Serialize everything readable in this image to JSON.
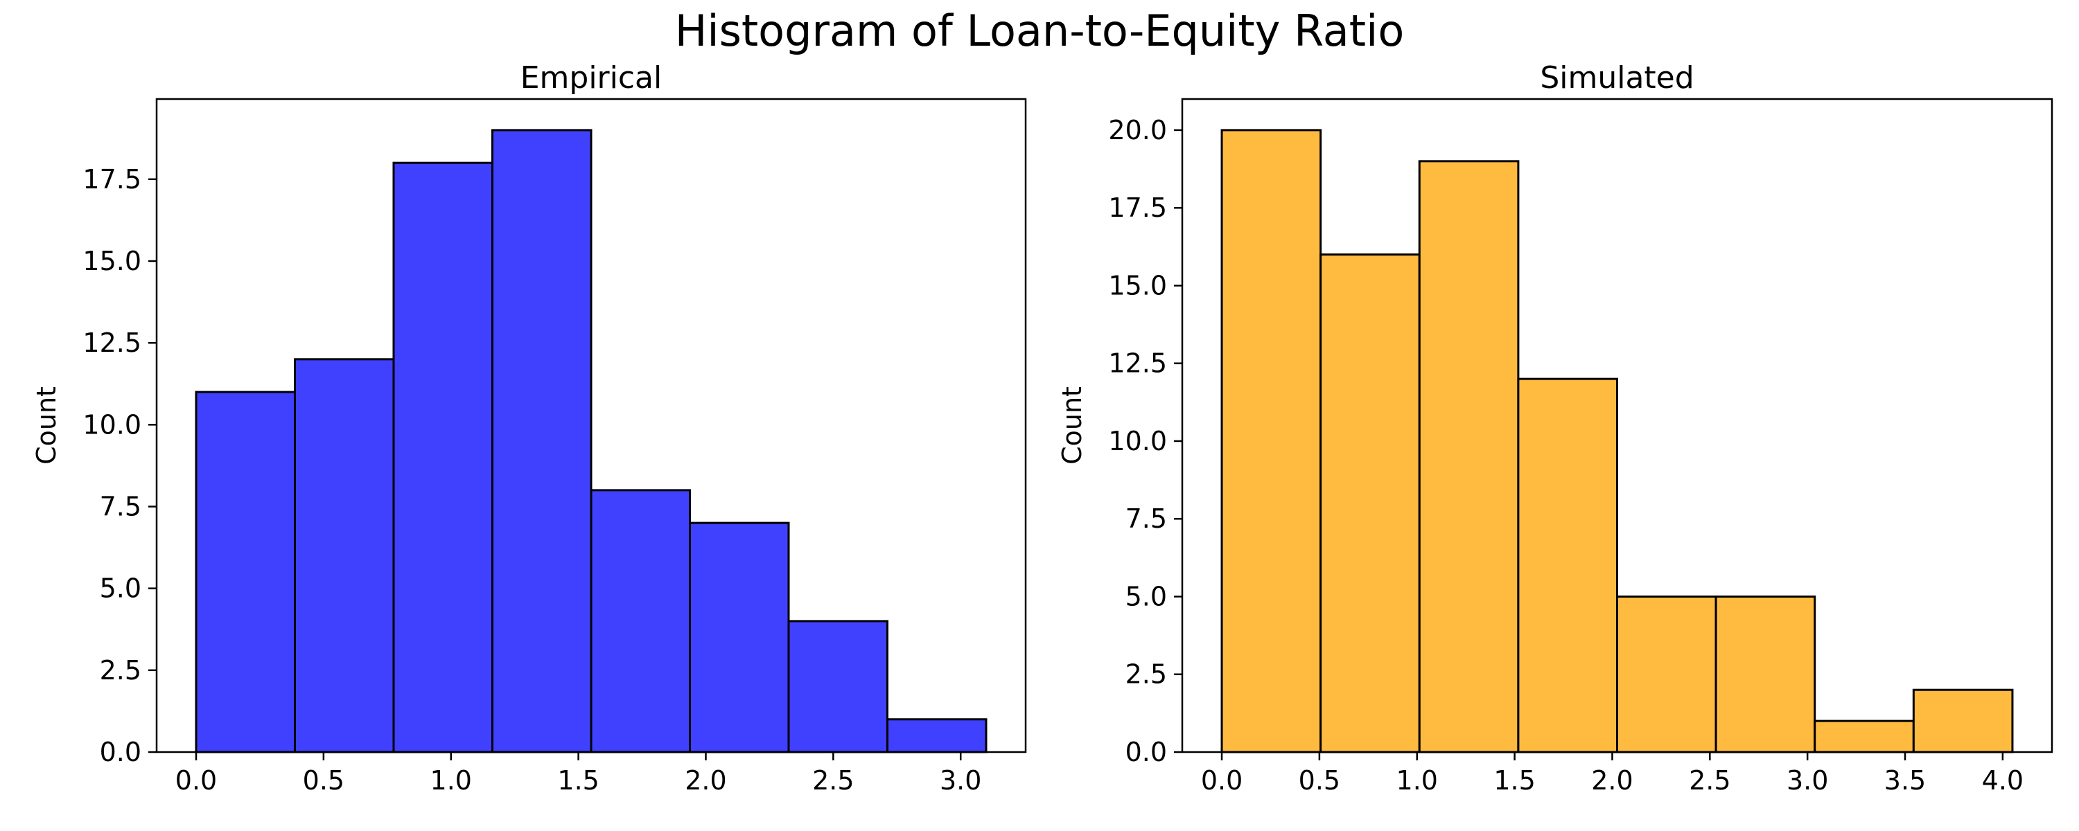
{
  "figure": {
    "title": "Histogram of Loan-to-Equity Ratio"
  },
  "chart_data": [
    {
      "type": "bar",
      "title": "Empirical",
      "xlabel": "",
      "ylabel": "Count",
      "bin_edges": [
        0.0,
        0.3875,
        0.775,
        1.1625,
        1.55,
        1.9375,
        2.325,
        2.7125,
        3.1
      ],
      "values": [
        11,
        12,
        18,
        19,
        8,
        7,
        4,
        1
      ],
      "xlim": [
        -0.155,
        3.255
      ],
      "ylim": [
        0,
        19.95
      ],
      "xticks": [
        0.0,
        0.5,
        1.0,
        1.5,
        2.0,
        2.5,
        3.0
      ],
      "xtick_labels": [
        "0.0",
        "0.5",
        "1.0",
        "1.5",
        "2.0",
        "2.5",
        "3.0"
      ],
      "yticks": [
        0.0,
        2.5,
        5.0,
        7.5,
        10.0,
        12.5,
        15.0,
        17.5
      ],
      "ytick_labels": [
        "0.0",
        "2.5",
        "5.0",
        "7.5",
        "10.0",
        "12.5",
        "15.0",
        "17.5"
      ],
      "bar_color": "#4040ff",
      "edge_color": "#000000",
      "grid": false
    },
    {
      "type": "bar",
      "title": "Simulated",
      "xlabel": "",
      "ylabel": "Count",
      "bin_edges": [
        0.0,
        0.50625,
        1.0125,
        1.51875,
        2.025,
        2.53125,
        3.0375,
        3.54375,
        4.05
      ],
      "values": [
        20,
        16,
        19,
        12,
        5,
        5,
        1,
        2
      ],
      "xlim": [
        -0.2025,
        4.2525
      ],
      "ylim": [
        0,
        21.0
      ],
      "xticks": [
        0.0,
        0.5,
        1.0,
        1.5,
        2.0,
        2.5,
        3.0,
        3.5,
        4.0
      ],
      "xtick_labels": [
        "0.0",
        "0.5",
        "1.0",
        "1.5",
        "2.0",
        "2.5",
        "3.0",
        "3.5",
        "4.0"
      ],
      "yticks": [
        0.0,
        2.5,
        5.0,
        7.5,
        10.0,
        12.5,
        15.0,
        17.5,
        20.0
      ],
      "ytick_labels": [
        "0.0",
        "2.5",
        "5.0",
        "7.5",
        "10.0",
        "12.5",
        "15.0",
        "17.5",
        "20.0"
      ],
      "bar_color": "#ffbb40",
      "edge_color": "#000000",
      "grid": false
    }
  ]
}
